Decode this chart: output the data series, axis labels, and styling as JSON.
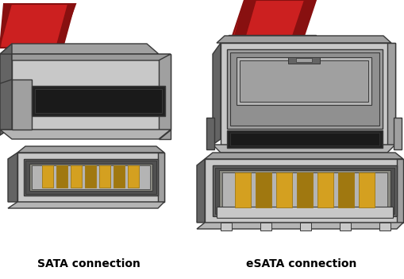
{
  "background_color": "#ffffff",
  "label_sata": "SATA connection",
  "label_esata": "eSATA connection",
  "label_fontsize": 10,
  "label_fontweight": "bold",
  "gray_light": "#c8c8c8",
  "gray_mid": "#a0a0a0",
  "gray_dark": "#646464",
  "gray_body": "#b4b4b4",
  "gray_inner": "#909090",
  "gray_deep": "#505050",
  "red_cable": "#cc2020",
  "red_cable_dark": "#881010",
  "gold": "#d4a020",
  "gold_dark": "#a07810",
  "black": "#222222",
  "outline": "#383838"
}
